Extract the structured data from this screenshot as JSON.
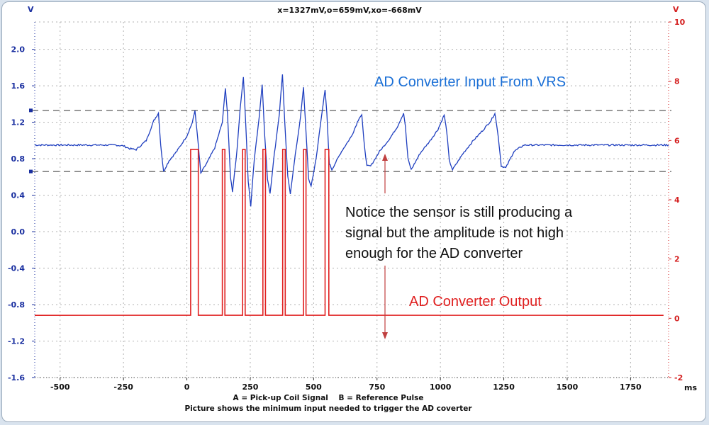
{
  "header": {
    "left_unit": "V",
    "right_unit": "V",
    "readout": "x=1327mV,o=659mV,xo=-668mV",
    "x_unit": "ms"
  },
  "footer": {
    "legend_line": "A = Pick-up Coil Signal    B = Reference Pulse",
    "caption": "Picture shows the minimum input needed to trigger the AD coverter"
  },
  "annotations": {
    "input_title": "AD Converter Input From VRS",
    "output_title": "AD Converter Output",
    "notice_lines": [
      "Notice the sensor is still producing a",
      "signal but the amplitude is not high",
      "enough for the AD converter"
    ]
  },
  "colors": {
    "input": "#1f3fbf",
    "output": "#e02020",
    "input_label": "#1a6fd6",
    "output_label": "#e02020",
    "left_axis": "#1a2fa0",
    "right_axis": "#d42020"
  },
  "chart_data": {
    "type": "line",
    "xlabel": "ms",
    "xlim": [
      -600,
      1900
    ],
    "x_ticks": [
      -500,
      -250,
      0,
      250,
      500,
      750,
      1000,
      1250,
      1500,
      1750
    ],
    "left_axis": {
      "unit": "V",
      "ylim": [
        -1.6,
        2.3
      ],
      "ticks": [
        "2.0",
        "1.6",
        "1.2",
        "0.8",
        "0.4",
        "0.0",
        "-0.4",
        "-0.8",
        "-1.2",
        "-1.6"
      ]
    },
    "right_axis": {
      "unit": "V",
      "ylim": [
        -2,
        10
      ],
      "ticks": [
        "10",
        "8",
        "6",
        "4",
        "2",
        "0",
        "-2"
      ]
    },
    "threshold_lines_v": [
      1.33,
      0.66
    ],
    "series": [
      {
        "key": "A",
        "axis": "left",
        "baseline": 0.95,
        "points": [
          [
            -600,
            0.95
          ],
          [
            -280,
            0.95
          ],
          [
            -250,
            0.94
          ],
          [
            -225,
            0.91
          ],
          [
            -200,
            0.9
          ],
          [
            -160,
            1.0
          ],
          [
            -130,
            1.22
          ],
          [
            -112,
            1.3
          ],
          [
            -103,
            0.95
          ],
          [
            -92,
            0.66
          ],
          [
            -70,
            0.78
          ],
          [
            -40,
            0.88
          ],
          [
            0,
            1.05
          ],
          [
            22,
            1.2
          ],
          [
            32,
            1.33
          ],
          [
            45,
            0.95
          ],
          [
            55,
            0.64
          ],
          [
            80,
            0.76
          ],
          [
            110,
            0.92
          ],
          [
            140,
            1.2
          ],
          [
            152,
            1.58
          ],
          [
            160,
            1.3
          ],
          [
            172,
            0.6
          ],
          [
            180,
            0.44
          ],
          [
            198,
            0.9
          ],
          [
            210,
            1.35
          ],
          [
            223,
            1.7
          ],
          [
            232,
            1.2
          ],
          [
            242,
            0.55
          ],
          [
            252,
            0.28
          ],
          [
            266,
            0.8
          ],
          [
            285,
            1.25
          ],
          [
            297,
            1.62
          ],
          [
            306,
            1.1
          ],
          [
            318,
            0.58
          ],
          [
            328,
            0.42
          ],
          [
            345,
            0.85
          ],
          [
            365,
            1.3
          ],
          [
            377,
            1.73
          ],
          [
            386,
            1.2
          ],
          [
            398,
            0.6
          ],
          [
            408,
            0.42
          ],
          [
            428,
            0.85
          ],
          [
            448,
            1.25
          ],
          [
            460,
            1.58
          ],
          [
            470,
            1.1
          ],
          [
            480,
            0.58
          ],
          [
            490,
            0.5
          ],
          [
            510,
            0.8
          ],
          [
            530,
            1.25
          ],
          [
            545,
            1.55
          ],
          [
            552,
            1.3
          ],
          [
            562,
            0.75
          ],
          [
            572,
            0.68
          ],
          [
            610,
            0.88
          ],
          [
            650,
            1.05
          ],
          [
            680,
            1.25
          ],
          [
            690,
            1.28
          ],
          [
            698,
            1.0
          ],
          [
            710,
            0.72
          ],
          [
            725,
            0.72
          ],
          [
            760,
            0.88
          ],
          [
            800,
            1.02
          ],
          [
            830,
            1.15
          ],
          [
            855,
            1.3
          ],
          [
            862,
            1.15
          ],
          [
            872,
            0.8
          ],
          [
            885,
            0.68
          ],
          [
            920,
            0.86
          ],
          [
            960,
            1.0
          ],
          [
            990,
            1.12
          ],
          [
            1015,
            1.28
          ],
          [
            1025,
            1.1
          ],
          [
            1035,
            0.78
          ],
          [
            1048,
            0.68
          ],
          [
            1090,
            0.86
          ],
          [
            1130,
            1.0
          ],
          [
            1170,
            1.12
          ],
          [
            1200,
            1.22
          ],
          [
            1215,
            1.3
          ],
          [
            1228,
            1.05
          ],
          [
            1240,
            0.72
          ],
          [
            1258,
            0.7
          ],
          [
            1290,
            0.88
          ],
          [
            1330,
            0.95
          ],
          [
            1900,
            0.95
          ]
        ]
      },
      {
        "key": "B",
        "axis": "right",
        "baseline": 0.1,
        "high": 5.7,
        "pulses": [
          [
            15,
            45
          ],
          [
            140,
            150
          ],
          [
            220,
            230
          ],
          [
            300,
            310
          ],
          [
            378,
            388
          ],
          [
            460,
            470
          ],
          [
            545,
            560
          ]
        ]
      }
    ]
  }
}
